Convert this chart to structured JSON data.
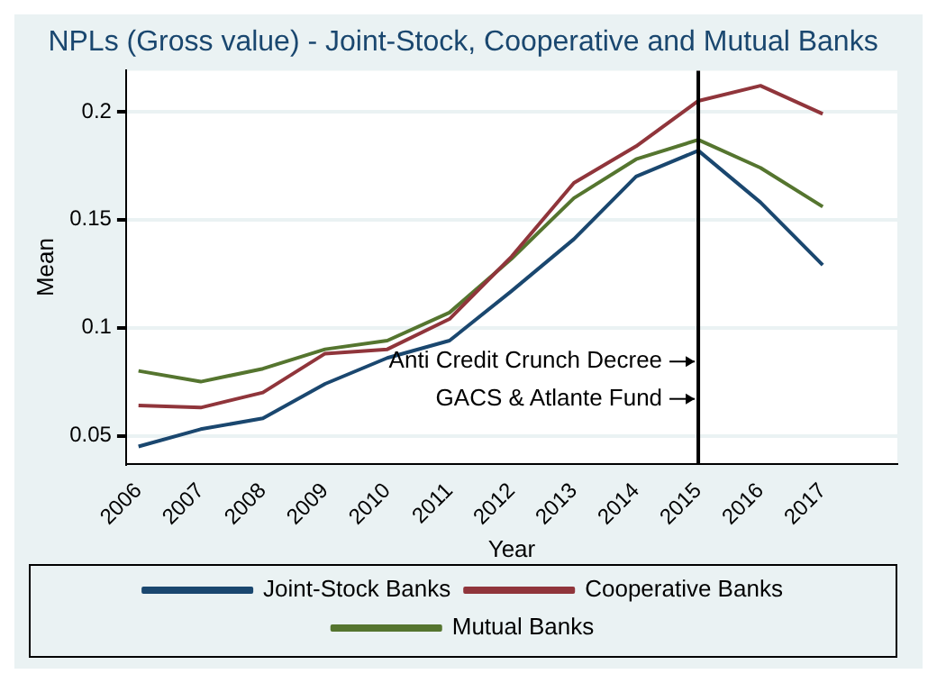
{
  "chart_data": {
    "type": "line",
    "title": "NPLs (Gross value) - Joint-Stock, Cooperative and Mutual Banks",
    "xlabel": "Year",
    "ylabel": "Mean",
    "x": [
      2006,
      2007,
      2008,
      2009,
      2010,
      2011,
      2012,
      2013,
      2014,
      2015,
      2016,
      2017
    ],
    "series": [
      {
        "name": "Joint-Stock Banks",
        "color": "#1a476f",
        "values": [
          0.045,
          0.053,
          0.058,
          0.074,
          0.086,
          0.094,
          0.117,
          0.141,
          0.17,
          0.182,
          0.158,
          0.129
        ]
      },
      {
        "name": "Cooperative Banks",
        "color": "#90353b",
        "values": [
          0.064,
          0.063,
          0.07,
          0.088,
          0.09,
          0.104,
          0.133,
          0.167,
          0.184,
          0.205,
          0.212,
          0.199
        ]
      },
      {
        "name": "Mutual Banks",
        "color": "#55752f",
        "values": [
          0.08,
          0.075,
          0.081,
          0.09,
          0.094,
          0.107,
          0.132,
          0.16,
          0.178,
          0.187,
          0.174,
          0.156
        ]
      }
    ],
    "xlim": [
      2005.8,
      2018.2
    ],
    "xticks": [
      2006,
      2007,
      2008,
      2009,
      2010,
      2011,
      2012,
      2013,
      2014,
      2015,
      2016,
      2017
    ],
    "ylim": [
      0.037,
      0.219
    ],
    "yticks": [
      0.05,
      {
        "value": 0.1,
        "label": "0.1"
      },
      0.15,
      {
        "value": 0.2,
        "label": "0.2"
      }
    ],
    "ref_lines": [
      {
        "axis": "x",
        "value": 2015,
        "color": "#000000"
      }
    ],
    "annotations": [
      "Anti Credit Crunch Decree",
      "GACS & Atlante Fund"
    ],
    "grid": "y",
    "legend": "bottom",
    "marker": "none",
    "line_style": "solid"
  }
}
